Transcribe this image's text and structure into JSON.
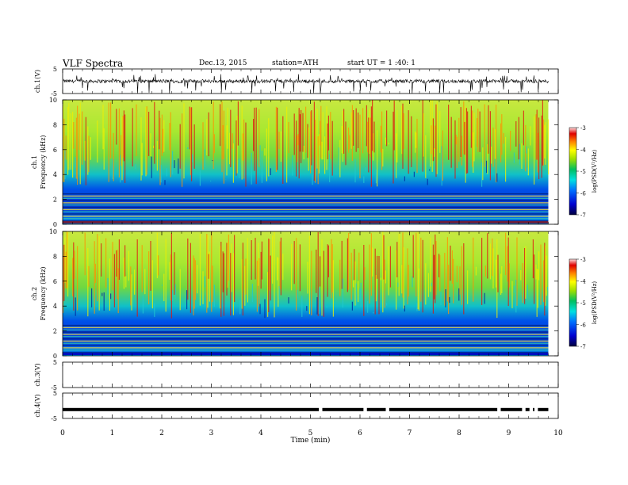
{
  "header": {
    "title": "VLF  Spectra",
    "date": "Dec.13, 2015",
    "station": "station=ATH",
    "start_ut": "start  UT  =   1 :40: 1"
  },
  "chart_data": [
    {
      "type": "line",
      "channel": "ch.1",
      "ylabel": "ch.1(V)",
      "ylim": [
        -5,
        5
      ],
      "yticks": [
        "5",
        "-5"
      ],
      "xlim": [
        0,
        10
      ],
      "series": [
        {
          "baseline": 0,
          "typical_range": [
            -1.5,
            1.5
          ],
          "spike_range": [
            -5,
            3
          ]
        }
      ],
      "line_color": "#000000"
    },
    {
      "type": "heatmap",
      "channel": "ch.1",
      "ylabel": "ch.1\nFrequency (kHz)",
      "ylabel_channel": "ch.1",
      "ylabel_freq": "Frequency  (kHz)",
      "ylim": [
        0,
        10
      ],
      "yticks": [
        "0",
        "2",
        "4",
        "6",
        "8",
        "10"
      ],
      "xlim": [
        0,
        10
      ],
      "data_extent_min": 9.8,
      "colorbar": {
        "label": "log(PSD(V²/Hz)",
        "range": [
          -7,
          -3
        ],
        "ticks": [
          "-3",
          "-4",
          "-5",
          "-6",
          "-7"
        ]
      }
    },
    {
      "type": "heatmap",
      "channel": "ch.2",
      "ylabel_channel": "ch.2",
      "ylabel_freq": "Frequency  (kHz)",
      "ylim": [
        0,
        10
      ],
      "yticks": [
        "0",
        "2",
        "4",
        "6",
        "8",
        "10"
      ],
      "xlim": [
        0,
        10
      ],
      "data_extent_min": 9.8,
      "colorbar": {
        "label": "log(PSD(V²/Hz)",
        "range": [
          -7,
          -3
        ],
        "ticks": [
          "-3",
          "-4",
          "-5",
          "-6",
          "-7"
        ]
      }
    },
    {
      "type": "line",
      "channel": "ch.3",
      "ylabel": "ch.3(V)",
      "ylim": [
        -5,
        5
      ],
      "yticks": [
        "5",
        "-5"
      ],
      "xlim": [
        0,
        10
      ],
      "series": [
        {
          "constant": null
        }
      ]
    },
    {
      "type": "line",
      "channel": "ch.4",
      "ylabel": "ch.4(V)",
      "ylim": [
        -5,
        5
      ],
      "yticks": [
        "5",
        "-5"
      ],
      "xlim": [
        0,
        10
      ],
      "series": [
        {
          "level": -1.5,
          "end": 9.8,
          "gaps": [
            5.2,
            6.1,
            6.55,
            8.8,
            9.3,
            9.45,
            9.55
          ]
        }
      ]
    }
  ],
  "xaxis": {
    "label": "Time  (min)",
    "ticks": [
      "0",
      "1",
      "2",
      "3",
      "4",
      "5",
      "6",
      "7",
      "8",
      "9",
      "10"
    ],
    "range": [
      0,
      10
    ]
  }
}
